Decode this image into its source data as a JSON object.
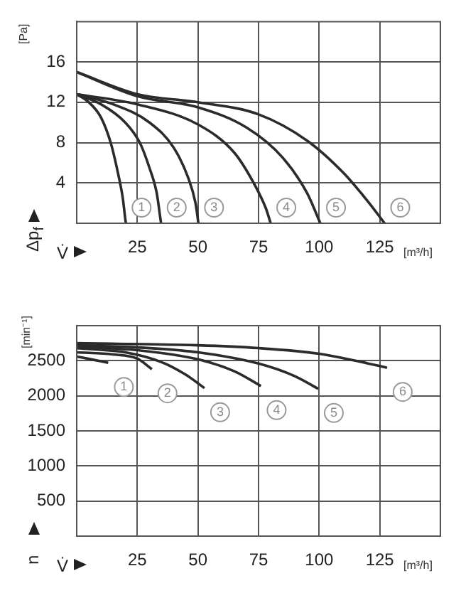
{
  "chart_data": [
    {
      "type": "line",
      "xlabel": "V̇",
      "ylabel": "Δp$_{f}$",
      "xlim": [
        0,
        150
      ],
      "ylim": [
        0,
        20
      ],
      "xticks": [
        25,
        50,
        75,
        100,
        125
      ],
      "yticks": [
        4,
        8,
        12,
        16
      ],
      "grid": true,
      "legend": false,
      "marker": "none",
      "line_style": "solid",
      "series": [
        {
          "name": "1",
          "color": "#2b2b2b",
          "x": [
            0,
            5,
            10,
            14,
            17,
            19,
            20,
            20.3
          ],
          "values": [
            12.8,
            12,
            10.5,
            8,
            5,
            2.5,
            0.5,
            0
          ]
        },
        {
          "name": "2",
          "color": "#2b2b2b",
          "x": [
            0,
            10,
            20,
            26,
            30,
            33,
            34.5,
            34.8
          ],
          "values": [
            12.8,
            11.8,
            10,
            8,
            5.5,
            3,
            0.5,
            0
          ]
        },
        {
          "name": "3",
          "color": "#2b2b2b",
          "x": [
            0,
            15,
            30,
            40,
            46,
            49,
            50.2
          ],
          "values": [
            12.8,
            11.8,
            10,
            7.5,
            4.5,
            2,
            0
          ]
        },
        {
          "name": "4",
          "color": "#2b2b2b",
          "x": [
            0,
            25,
            50,
            65,
            73,
            78,
            80
          ],
          "values": [
            12.8,
            11.8,
            9.8,
            7,
            4,
            1.5,
            0
          ]
        },
        {
          "name": "5",
          "color": "#2b2b2b",
          "x": [
            0,
            25,
            50,
            70,
            85,
            95,
            100.5
          ],
          "values": [
            15,
            12.6,
            11.5,
            9.5,
            6.5,
            3,
            0
          ]
        },
        {
          "name": "6",
          "color": "#2b2b2b",
          "x": [
            0,
            25,
            50,
            75,
            95,
            110,
            120,
            127
          ],
          "values": [
            15,
            12.8,
            12,
            10.8,
            8.2,
            5,
            2.2,
            0
          ]
        }
      ],
      "annotations": [
        "[Pa]",
        "[m³/h]"
      ]
    },
    {
      "type": "line",
      "xlabel": "V̇",
      "ylabel": "n",
      "xlim": [
        0,
        150
      ],
      "ylim": [
        0,
        3000
      ],
      "xticks": [
        25,
        50,
        75,
        100,
        125
      ],
      "yticks": [
        500,
        1000,
        1500,
        2000,
        2500
      ],
      "grid": true,
      "legend": false,
      "marker": "none",
      "line_style": "solid",
      "series": [
        {
          "name": "1",
          "color": "#2b2b2b",
          "x": [
            0,
            6,
            13
          ],
          "values": [
            2560,
            2520,
            2470
          ]
        },
        {
          "name": "2",
          "color": "#2b2b2b",
          "x": [
            0,
            15,
            25,
            31
          ],
          "values": [
            2620,
            2590,
            2530,
            2380
          ]
        },
        {
          "name": "3",
          "color": "#2b2b2b",
          "x": [
            0,
            20,
            35,
            45,
            52.7
          ],
          "values": [
            2680,
            2620,
            2480,
            2300,
            2110
          ]
        },
        {
          "name": "4",
          "color": "#2b2b2b",
          "x": [
            0,
            25,
            50,
            65,
            76
          ],
          "values": [
            2700,
            2650,
            2520,
            2350,
            2140
          ]
        },
        {
          "name": "5",
          "color": "#2b2b2b",
          "x": [
            0,
            25,
            50,
            75,
            90,
            99.6
          ],
          "values": [
            2720,
            2690,
            2620,
            2460,
            2280,
            2100
          ]
        },
        {
          "name": "6",
          "color": "#2b2b2b",
          "x": [
            0,
            50,
            75,
            100,
            115,
            128
          ],
          "values": [
            2750,
            2720,
            2680,
            2600,
            2500,
            2400
          ]
        }
      ],
      "annotations": [
        "[min⁻¹]",
        "[m³/h]"
      ]
    }
  ]
}
